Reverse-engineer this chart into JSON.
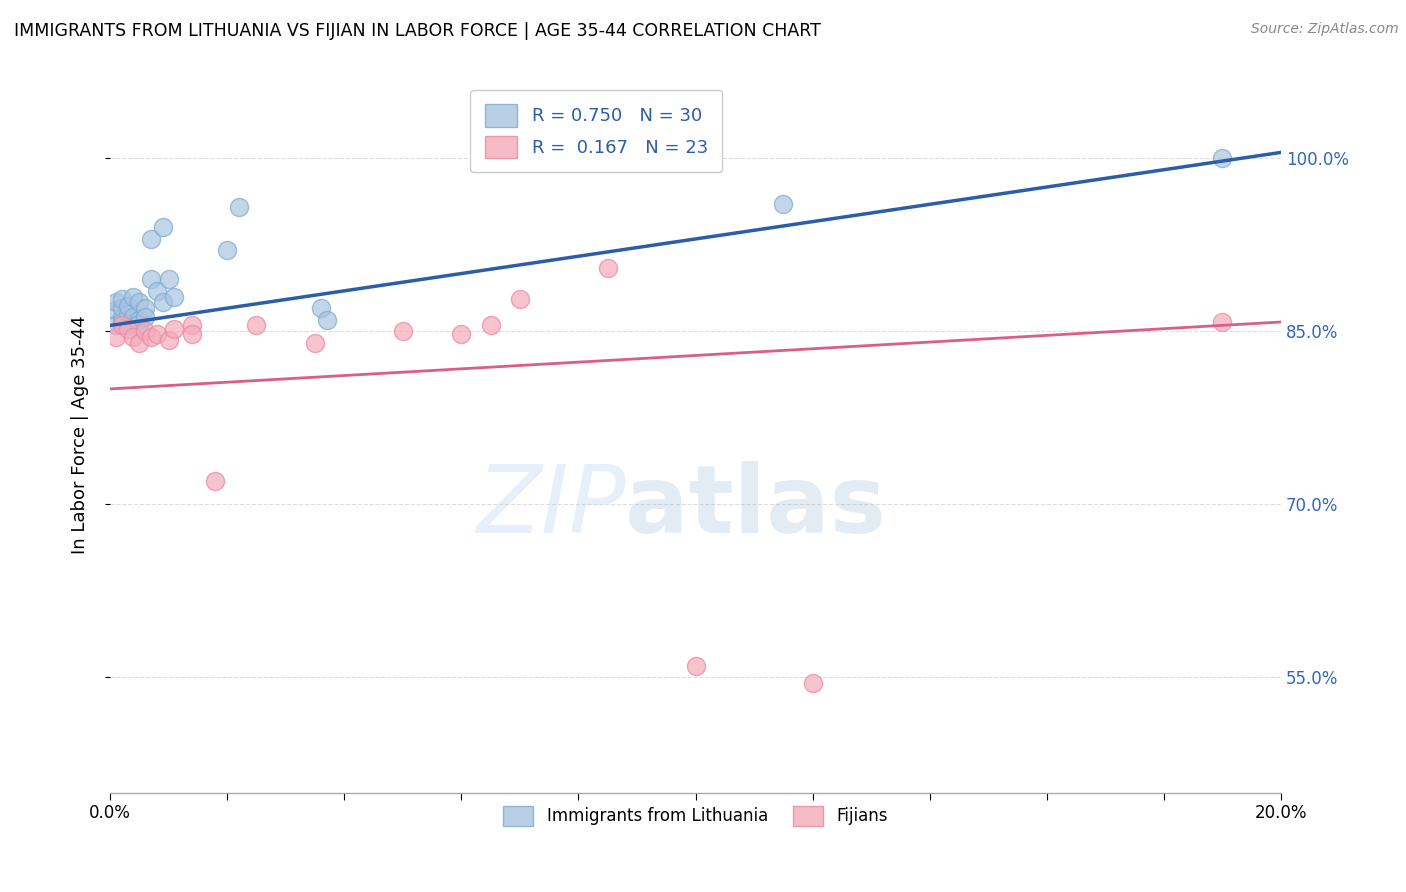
{
  "title": "IMMIGRANTS FROM LITHUANIA VS FIJIAN IN LABOR FORCE | AGE 35-44 CORRELATION CHART",
  "source": "Source: ZipAtlas.com",
  "ylabel": "In Labor Force | Age 35-44",
  "xlim": [
    0.0,
    0.2
  ],
  "ylim": [
    0.45,
    1.07
  ],
  "yticks": [
    0.55,
    0.7,
    0.85,
    1.0
  ],
  "ytick_labels": [
    "55.0%",
    "70.0%",
    "85.0%",
    "100.0%"
  ],
  "xticks": [
    0.0,
    0.02,
    0.04,
    0.06,
    0.08,
    0.1,
    0.12,
    0.14,
    0.16,
    0.18,
    0.2
  ],
  "xtick_labels": [
    "0.0%",
    "",
    "",
    "",
    "",
    "",
    "",
    "",
    "",
    "",
    "20.0%"
  ],
  "legend_R_blue": "R = 0.750",
  "legend_N_blue": "N = 30",
  "legend_R_pink": "R =  0.167",
  "legend_N_pink": "N = 23",
  "legend_label_blue": "Immigrants from Lithuania",
  "legend_label_pink": "Fijians",
  "watermark_zip": "ZIP",
  "watermark_atlas": "atlas",
  "blue_color": "#A8C4E0",
  "blue_edge_color": "#7AAAD0",
  "pink_color": "#F4AABA",
  "pink_edge_color": "#E888A0",
  "blue_line_color": "#2B5EA7",
  "pink_line_color": "#D95F8A",
  "blue_scatter_x": [
    0.001,
    0.001,
    0.001,
    0.002,
    0.002,
    0.002,
    0.002,
    0.003,
    0.003,
    0.003,
    0.004,
    0.004,
    0.005,
    0.005,
    0.005,
    0.006,
    0.006,
    0.007,
    0.007,
    0.008,
    0.009,
    0.009,
    0.01,
    0.011,
    0.02,
    0.022,
    0.036,
    0.037,
    0.115,
    0.19
  ],
  "blue_scatter_y": [
    0.868,
    0.855,
    0.875,
    0.862,
    0.87,
    0.858,
    0.878,
    0.865,
    0.855,
    0.872,
    0.88,
    0.862,
    0.875,
    0.86,
    0.856,
    0.87,
    0.862,
    0.895,
    0.93,
    0.885,
    0.94,
    0.875,
    0.895,
    0.88,
    0.92,
    0.958,
    0.87,
    0.86,
    0.96,
    1.0
  ],
  "pink_scatter_x": [
    0.001,
    0.002,
    0.003,
    0.004,
    0.005,
    0.006,
    0.007,
    0.008,
    0.01,
    0.011,
    0.014,
    0.014,
    0.018,
    0.025,
    0.035,
    0.05,
    0.06,
    0.065,
    0.07,
    0.085,
    0.1,
    0.12,
    0.19
  ],
  "pink_scatter_y": [
    0.845,
    0.855,
    0.852,
    0.845,
    0.84,
    0.85,
    0.845,
    0.848,
    0.842,
    0.852,
    0.855,
    0.848,
    0.72,
    0.855,
    0.84,
    0.85,
    0.848,
    0.855,
    0.878,
    0.905,
    0.56,
    0.545,
    0.858
  ],
  "blue_line_x": [
    0.0,
    0.2
  ],
  "blue_line_y": [
    0.855,
    1.005
  ],
  "pink_line_x": [
    0.0,
    0.2
  ],
  "pink_line_y": [
    0.8,
    0.858
  ],
  "text_color_blue": "#2B5EA7",
  "text_color_right": "#3366BB",
  "grid_color": "#DDDDDD",
  "background_color": "#FFFFFF"
}
